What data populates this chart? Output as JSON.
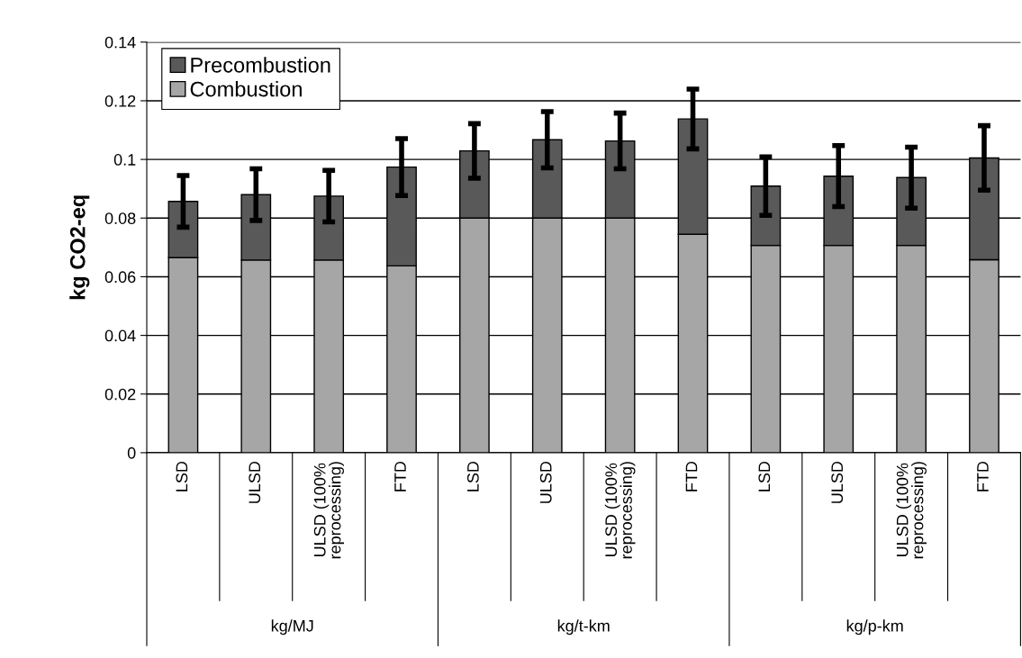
{
  "chart_data": {
    "type": "bar",
    "stacked": true,
    "ylabel": "kg CO2-eq",
    "categories": [
      "LSD",
      "ULSD",
      "ULSD (100%\nreprocessing)",
      "FTD",
      "LSD",
      "ULSD",
      "ULSD (100%\nreprocessing)",
      "FTD",
      "LSD",
      "ULSD",
      "ULSD (100%\nreprocessing)",
      "FTD"
    ],
    "series": [
      {
        "name": "Combustion",
        "color": "#a6a6a6",
        "values": [
          0.0665,
          0.0657,
          0.0657,
          0.0637,
          0.08,
          0.08,
          0.08,
          0.0745,
          0.0707,
          0.0707,
          0.0707,
          0.0658
        ]
      },
      {
        "name": "Precombustion",
        "color": "#595959",
        "values": [
          0.0192,
          0.0223,
          0.0218,
          0.0337,
          0.0229,
          0.0267,
          0.0263,
          0.0393,
          0.0202,
          0.0236,
          0.0231,
          0.0347
        ],
        "errors": [
          0.0088,
          0.0088,
          0.0088,
          0.0097,
          0.0093,
          0.0096,
          0.0095,
          0.0102,
          0.01,
          0.0104,
          0.0104,
          0.011
        ]
      }
    ],
    "annotations": [
      "kg/MJ",
      "kg/t-km",
      "kg/p-km"
    ],
    "ylim": [
      0,
      0.14
    ],
    "yticks": [
      0,
      0.02,
      0.04,
      0.06,
      0.08,
      0.1,
      0.12,
      0.14
    ],
    "grid": "y",
    "legend": "top left"
  }
}
